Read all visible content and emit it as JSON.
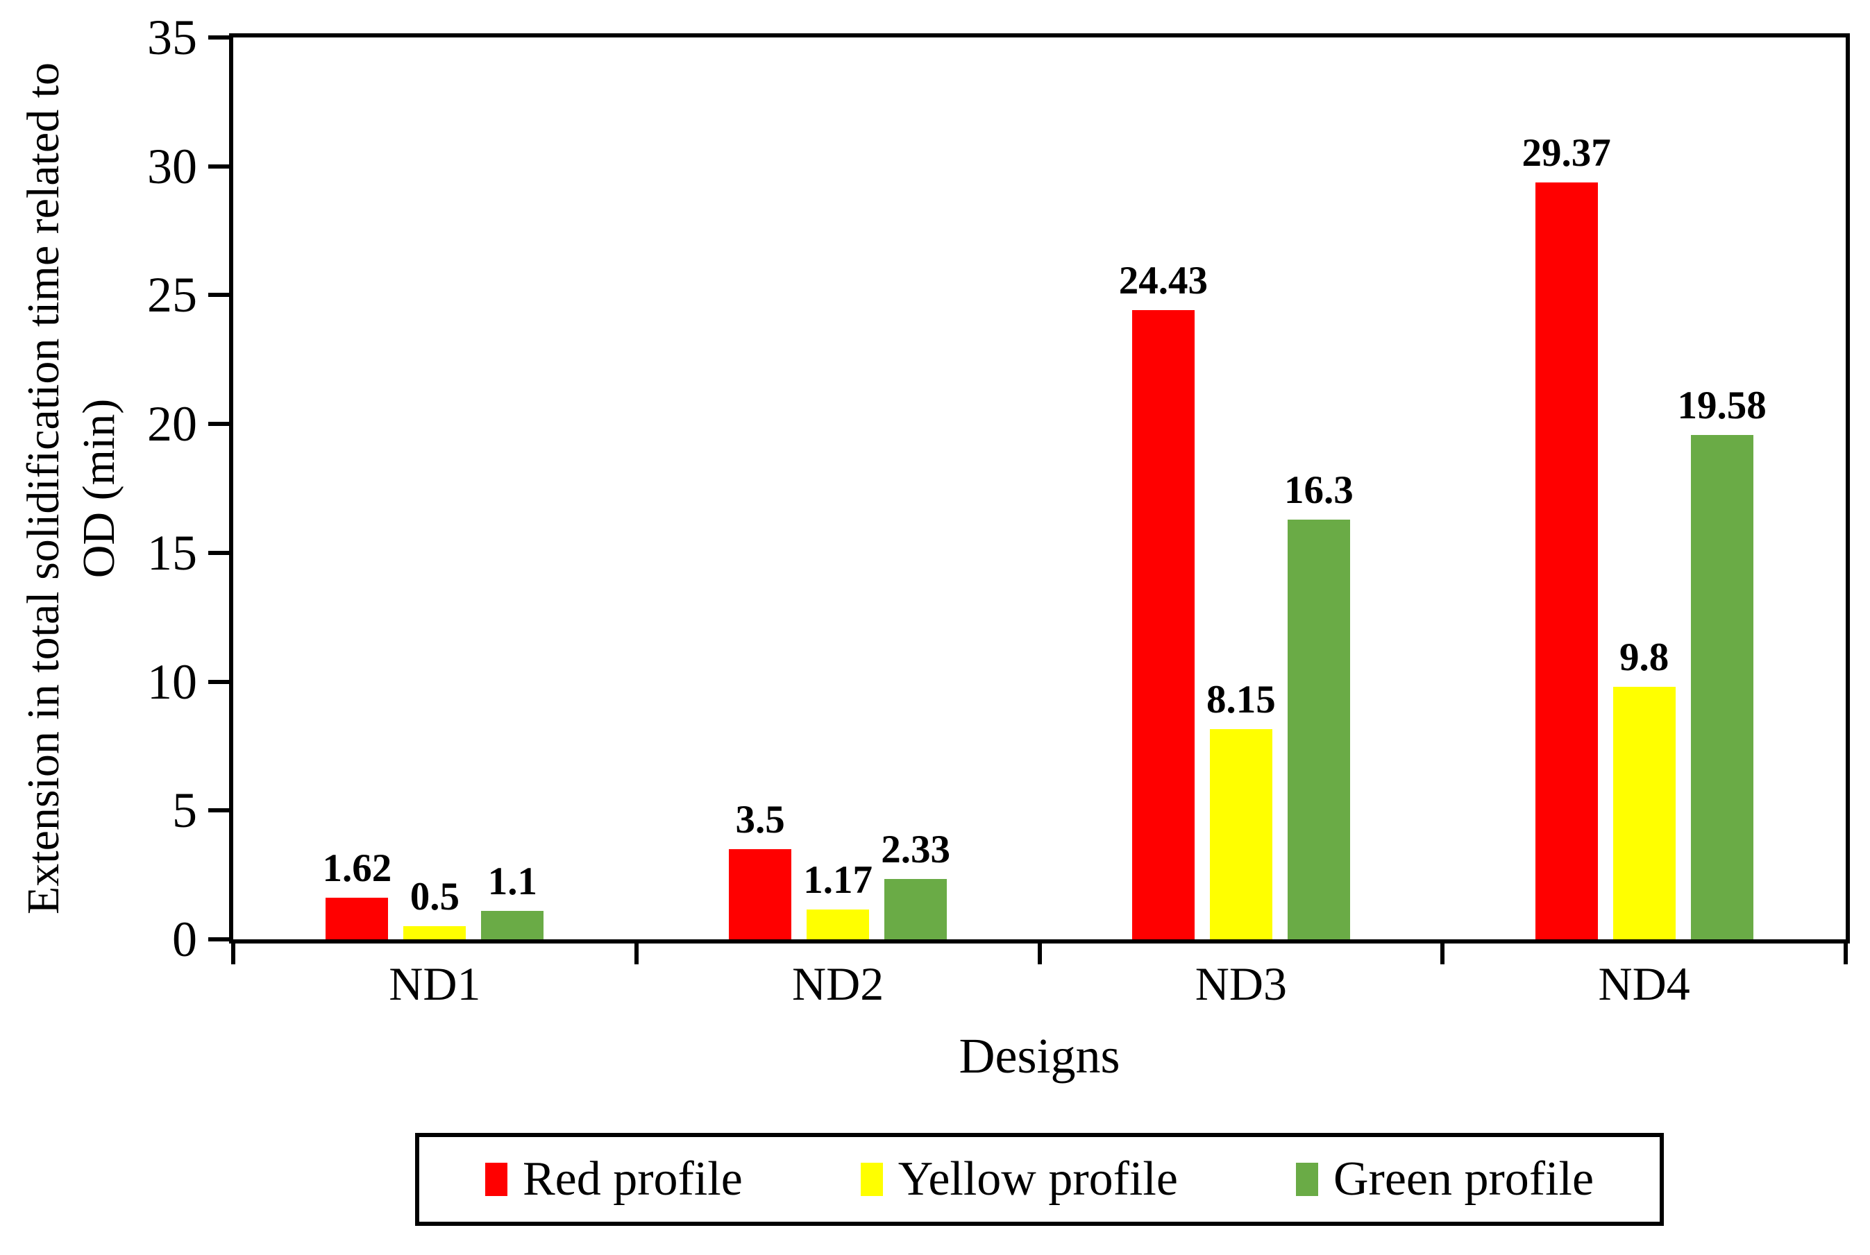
{
  "chart_data": {
    "type": "bar",
    "title": "",
    "xlabel": "Designs",
    "ylabel": "Extension in total solidification time related to OD (min)",
    "ylabel_lines": [
      "Extension in total solidification time related to",
      "OD (min)"
    ],
    "categories": [
      "ND1",
      "ND2",
      "ND3",
      "ND4"
    ],
    "series": [
      {
        "name": "Red profile",
        "color": "#FF0000",
        "values": [
          1.62,
          3.5,
          24.43,
          29.37
        ],
        "labels": [
          "1.62",
          "3.5",
          "24.43",
          "29.37"
        ]
      },
      {
        "name": "Yellow profile",
        "color": "#FFFF00",
        "values": [
          0.5,
          1.17,
          8.15,
          9.8
        ],
        "labels": [
          "0.5",
          "1.17",
          "8.15",
          "9.8"
        ]
      },
      {
        "name": "Green profile",
        "color": "#6AAB46",
        "values": [
          1.1,
          2.33,
          16.3,
          19.58
        ],
        "labels": [
          "1.1",
          "2.33",
          "16.3",
          "19.58"
        ]
      }
    ],
    "ylim": [
      0,
      35
    ],
    "yticks": [
      0,
      5,
      10,
      15,
      20,
      25,
      30,
      35
    ],
    "grid": false,
    "legend_position": "bottom",
    "plot_border": "box"
  },
  "colors": {
    "axis": "#000000",
    "background": "#FFFFFF",
    "text": "#000000"
  }
}
